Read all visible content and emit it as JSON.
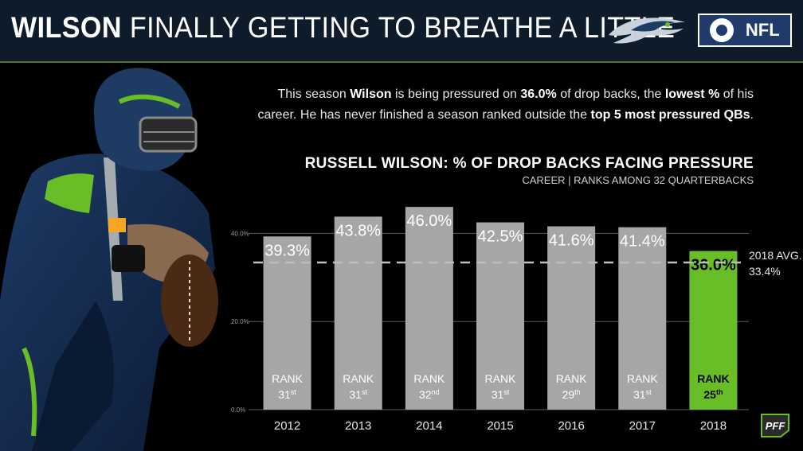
{
  "header": {
    "title_bold": "WILSON",
    "title_rest": "FINALLY GETTING TO BREATHE A LITTLE",
    "badge_text": "NFL"
  },
  "description": {
    "p1": "This season ",
    "b1": "Wilson",
    "p2": " is being pressured on ",
    "b2": "36.0%",
    "p3": " of drop backs, the ",
    "b3": "lowest %",
    "p4": " of his career. He has never finished a season ranked outside the ",
    "b4": "top 5 most pressured QBs",
    "p5": "."
  },
  "chart_data": {
    "type": "bar",
    "title": "RUSSELL WILSON: % OF DROP BACKS FACING PRESSURE",
    "subtitle": "CAREER | RANKS AMONG 32 QUARTERBACKS",
    "categories": [
      "2012",
      "2013",
      "2014",
      "2015",
      "2016",
      "2017",
      "2018"
    ],
    "values": [
      39.3,
      43.8,
      46.0,
      42.5,
      41.6,
      41.4,
      36.0
    ],
    "value_labels": [
      "39.3%",
      "43.8%",
      "46.0%",
      "42.5%",
      "41.6%",
      "41.4%",
      "36.0%"
    ],
    "rank_label": "RANK",
    "ranks": [
      {
        "num": "31",
        "suffix": "st"
      },
      {
        "num": "31",
        "suffix": "st"
      },
      {
        "num": "32",
        "suffix": "nd"
      },
      {
        "num": "31",
        "suffix": "st"
      },
      {
        "num": "29",
        "suffix": "th"
      },
      {
        "num": "31",
        "suffix": "st"
      },
      {
        "num": "25",
        "suffix": "th"
      }
    ],
    "yticks": [
      0,
      20,
      40
    ],
    "ytick_labels": [
      "0.0%",
      "20.0%",
      "40.0%"
    ],
    "ylim": [
      0,
      50
    ],
    "reference_line": {
      "value": 33.4,
      "label_line1": "2018 AVG.",
      "label_line2": "33.4%"
    },
    "colors": {
      "default_bar": "#a6a6a6",
      "highlight_bar": "#69be28",
      "highlight_index": 6
    }
  }
}
